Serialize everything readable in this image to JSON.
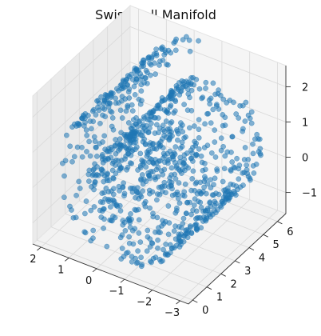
{
  "chart_data": {
    "type": "scatter",
    "title": "Swiss Roll Manifold",
    "projection": "3d",
    "marker_color": "#1f77b4",
    "marker_alpha": 0.55,
    "point_count": 1000,
    "xlim": [
      -3.3,
      2.3
    ],
    "ylim": [
      -0.3,
      6.6
    ],
    "zlim": [
      -1.6,
      2.6
    ],
    "x_ticks": [
      "−3",
      "−2",
      "−1",
      "0",
      "1",
      "2"
    ],
    "y_ticks": [
      "0",
      "1",
      "2",
      "3",
      "4",
      "5",
      "6"
    ],
    "z_ticks": [
      "−1",
      "0",
      "1",
      "2"
    ],
    "grid": true
  }
}
